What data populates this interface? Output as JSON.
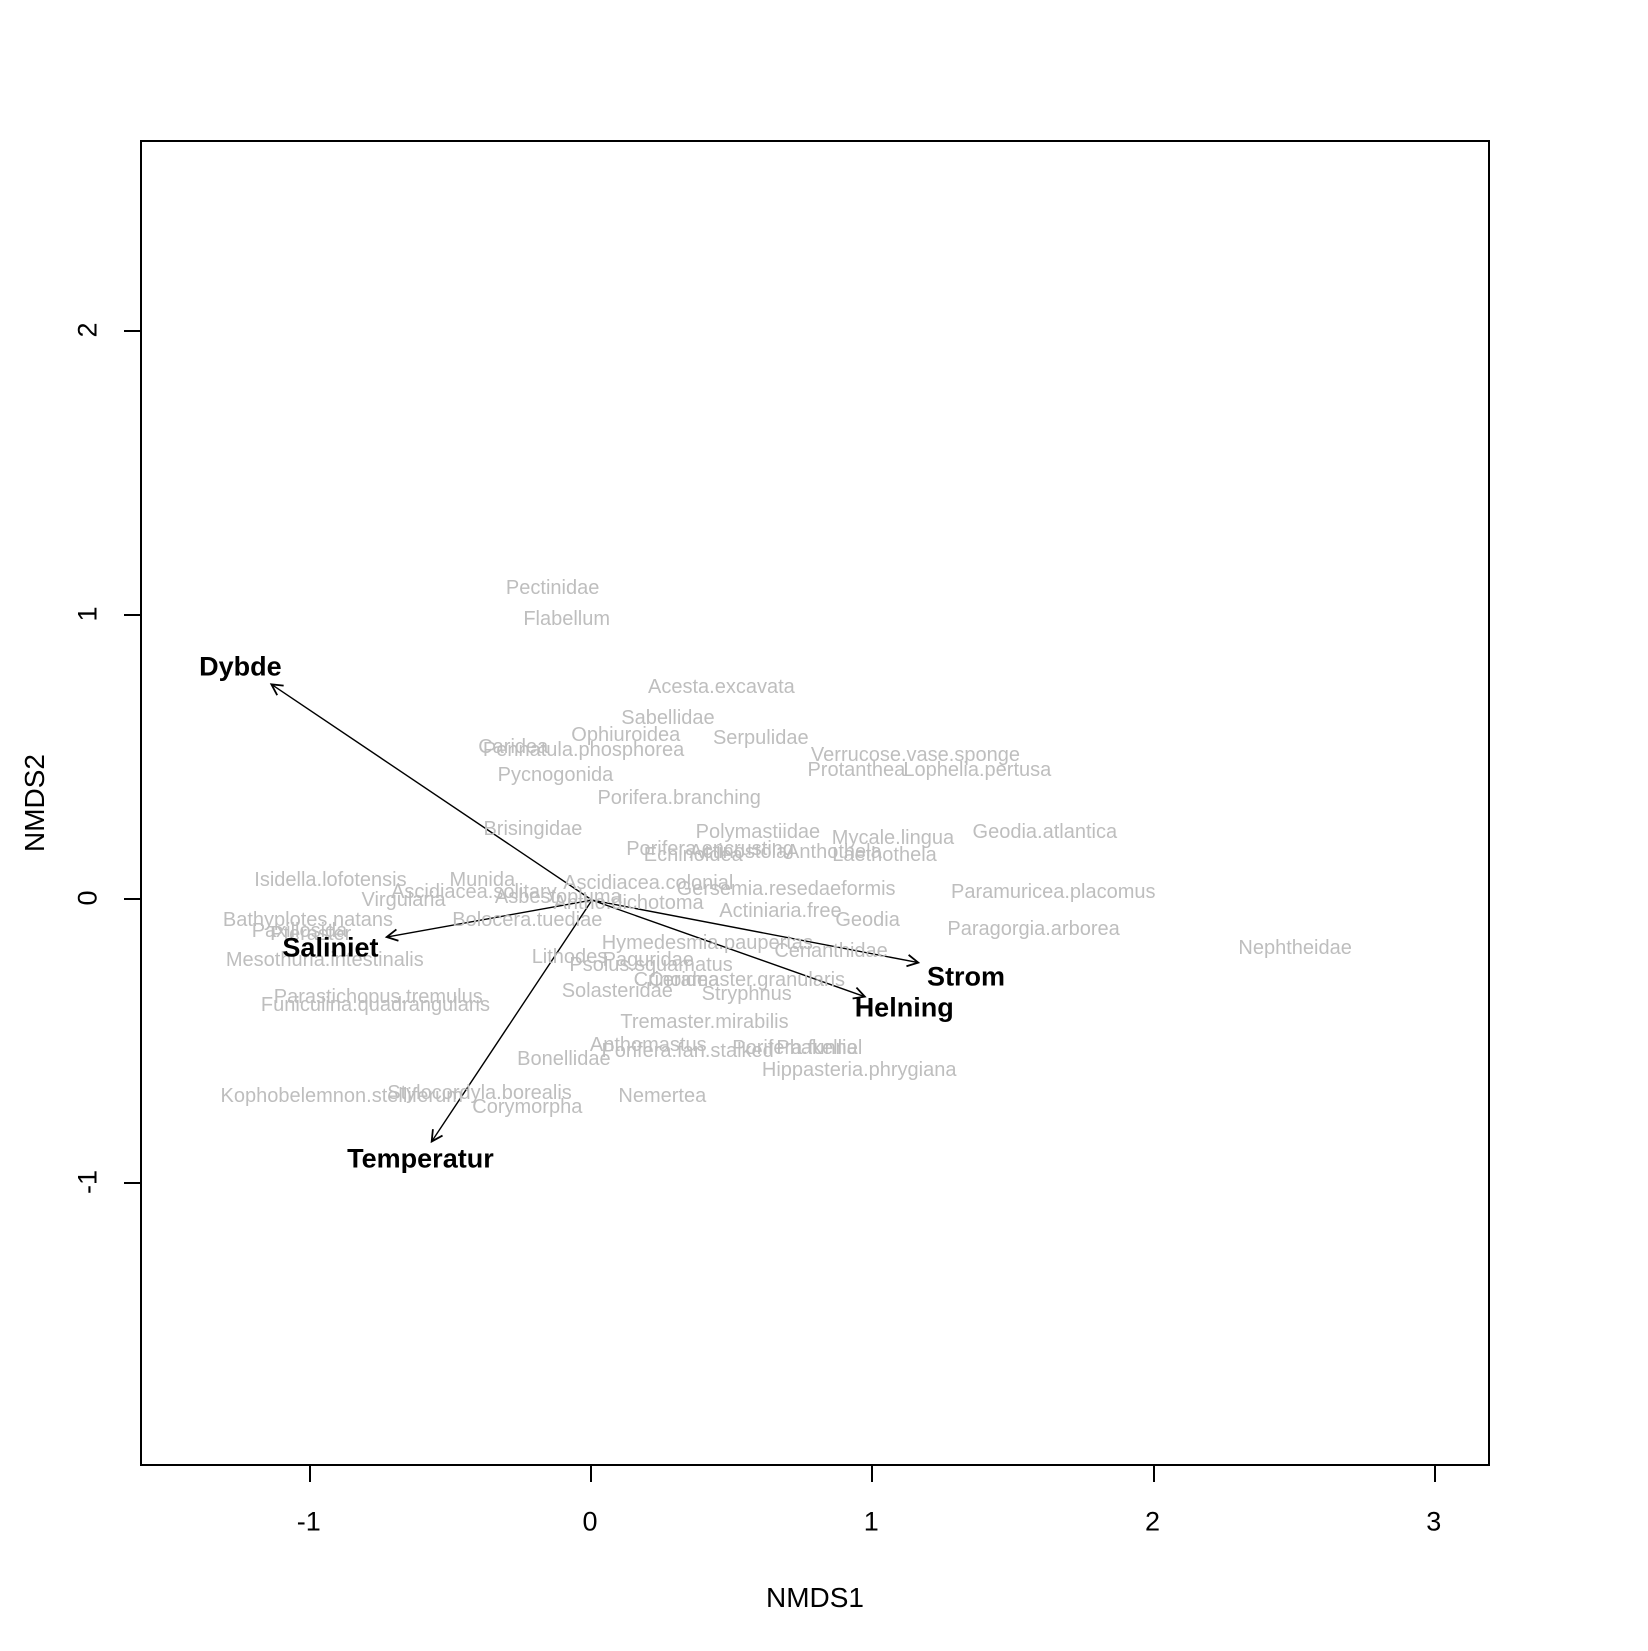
{
  "figure": {
    "background": "#ffffff",
    "box_color": "#000000"
  },
  "axes": {
    "xlabel": "NMDS1",
    "ylabel": "NMDS2",
    "x_ticks": [
      -1,
      0,
      1,
      2,
      3
    ],
    "y_ticks": [
      -1,
      0,
      1,
      2
    ],
    "x_range": [
      -1.6,
      3.2
    ],
    "y_range": [
      -2.0,
      2.67
    ]
  },
  "chart_data": {
    "type": "scatter",
    "title": "",
    "xlabel": "NMDS1",
    "ylabel": "NMDS2",
    "xlim": [
      -1.6,
      3.2
    ],
    "ylim": [
      -2.0,
      2.67
    ],
    "grid": false,
    "species_color": "#bebebe",
    "vector_color": "#000000",
    "species": [
      {
        "label": "Pectinidae",
        "x": -0.14,
        "y": 1.1
      },
      {
        "label": "Flabellum",
        "x": -0.09,
        "y": 0.99
      },
      {
        "label": "Acesta.excavata",
        "x": 0.46,
        "y": 0.75
      },
      {
        "label": "Sabellidae",
        "x": 0.27,
        "y": 0.64
      },
      {
        "label": "Ophiuroidea",
        "x": 0.12,
        "y": 0.58
      },
      {
        "label": "Serpulidae",
        "x": 0.6,
        "y": 0.57
      },
      {
        "label": "Caridea",
        "x": -0.28,
        "y": 0.54
      },
      {
        "label": "Pennatula.phosphorea",
        "x": -0.03,
        "y": 0.53
      },
      {
        "label": "Verrucose.vase.sponge",
        "x": 1.15,
        "y": 0.51
      },
      {
        "label": "Protanthea",
        "x": 0.94,
        "y": 0.46
      },
      {
        "label": "Lophelia.pertusa",
        "x": 1.37,
        "y": 0.46
      },
      {
        "label": "Pycnogonida",
        "x": -0.13,
        "y": 0.44
      },
      {
        "label": "Porifera.branching",
        "x": 0.31,
        "y": 0.36
      },
      {
        "label": "Brisingidae",
        "x": -0.21,
        "y": 0.25
      },
      {
        "label": "Polymastiidae",
        "x": 0.59,
        "y": 0.24
      },
      {
        "label": "Mycale.lingua",
        "x": 1.07,
        "y": 0.22
      },
      {
        "label": "Geodia.atlantica",
        "x": 1.61,
        "y": 0.24
      },
      {
        "label": "Porifera.encrusting",
        "x": 0.42,
        "y": 0.18
      },
      {
        "label": "Actinostola",
        "x": 0.52,
        "y": 0.17
      },
      {
        "label": "Echinoidea",
        "x": 0.36,
        "y": 0.16
      },
      {
        "label": "Anthothela",
        "x": 0.86,
        "y": 0.17
      },
      {
        "label": "Laethothela",
        "x": 1.04,
        "y": 0.16
      },
      {
        "label": "Isidella.lofotensis",
        "x": -0.93,
        "y": 0.07
      },
      {
        "label": "Munida",
        "x": -0.39,
        "y": 0.07
      },
      {
        "label": "Ascidiacea.solitary",
        "x": -0.42,
        "y": 0.03
      },
      {
        "label": "Ascidiacea.colonial",
        "x": 0.2,
        "y": 0.06
      },
      {
        "label": "Gersemia.resedaeformis",
        "x": 0.69,
        "y": 0.04
      },
      {
        "label": "Virgularia",
        "x": -0.67,
        "y": 0.0
      },
      {
        "label": "Asbestopluma",
        "x": -0.12,
        "y": 0.01
      },
      {
        "label": "Antho.dichotoma",
        "x": 0.13,
        "y": -0.01
      },
      {
        "label": "Actiniaria.free",
        "x": 0.67,
        "y": -0.04
      },
      {
        "label": "Bathyplotes.natans",
        "x": -1.01,
        "y": -0.07
      },
      {
        "label": "Bolocera.tuediae",
        "x": -0.23,
        "y": -0.07
      },
      {
        "label": "Geodia",
        "x": 0.98,
        "y": -0.07
      },
      {
        "label": "Paramuricea.placomus",
        "x": 1.64,
        "y": 0.03
      },
      {
        "label": "Paragorgia.arborea",
        "x": 1.57,
        "y": -0.1
      },
      {
        "label": "Paxillosida",
        "x": -1.04,
        "y": -0.11
      },
      {
        "label": "Pteraster",
        "x": -1.0,
        "y": -0.12
      },
      {
        "label": "Mesothuria.intestinalis",
        "x": -0.95,
        "y": -0.21
      },
      {
        "label": "Hymedesmia.paupertas",
        "x": 0.41,
        "y": -0.15
      },
      {
        "label": "Cerianthidae",
        "x": 0.85,
        "y": -0.18
      },
      {
        "label": "Lithodes",
        "x": -0.08,
        "y": -0.2
      },
      {
        "label": "Paguridae",
        "x": 0.2,
        "y": -0.21
      },
      {
        "label": "Psolus.squamatus",
        "x": 0.21,
        "y": -0.23
      },
      {
        "label": "Crinoidea",
        "x": 0.3,
        "y": -0.28
      },
      {
        "label": "Ceramaster.granularis",
        "x": 0.55,
        "y": -0.28
      },
      {
        "label": "Nephtheidae",
        "x": 2.5,
        "y": -0.17
      },
      {
        "label": "Solasteridae",
        "x": 0.09,
        "y": -0.32
      },
      {
        "label": "Stryphnus",
        "x": 0.55,
        "y": -0.33
      },
      {
        "label": "Parastichopus.tremulus",
        "x": -0.76,
        "y": -0.34
      },
      {
        "label": "Funiculina.quadrangularis",
        "x": -0.77,
        "y": -0.37
      },
      {
        "label": "Tremaster.mirabilis",
        "x": 0.4,
        "y": -0.43
      },
      {
        "label": "Anthomastus",
        "x": 0.2,
        "y": -0.51
      },
      {
        "label": "Bonellidae",
        "x": -0.1,
        "y": -0.56
      },
      {
        "label": "Porifera.fan.stalked",
        "x": 0.34,
        "y": -0.53
      },
      {
        "label": "Porifera.funnel",
        "x": 0.73,
        "y": -0.52
      },
      {
        "label": "Phakellia",
        "x": 0.8,
        "y": -0.52
      },
      {
        "label": "Hippasteria.phrygiana",
        "x": 0.95,
        "y": -0.6
      },
      {
        "label": "Kophobelemnon.stelliferum",
        "x": -0.89,
        "y": -0.69
      },
      {
        "label": "Stylocordyla.borealis",
        "x": -0.4,
        "y": -0.68
      },
      {
        "label": "Corymorpha",
        "x": -0.23,
        "y": -0.73
      },
      {
        "label": "Nemertea",
        "x": 0.25,
        "y": -0.69
      }
    ],
    "vectors": [
      {
        "label": "Dybde",
        "x": -1.14,
        "y": 0.76,
        "label_x": -1.25,
        "label_y": 0.82
      },
      {
        "label": "Saliniet",
        "x": -0.73,
        "y": -0.13,
        "label_x": -0.93,
        "label_y": -0.17
      },
      {
        "label": "Strom",
        "x": 1.16,
        "y": -0.22,
        "label_x": 1.33,
        "label_y": -0.27
      },
      {
        "label": "Helning",
        "x": 0.97,
        "y": -0.34,
        "label_x": 1.11,
        "label_y": -0.38
      },
      {
        "label": "Temperatur",
        "x": -0.57,
        "y": -0.85,
        "label_x": -0.61,
        "label_y": -0.91
      }
    ],
    "vector_origin": {
      "x": 0,
      "y": 0
    }
  }
}
